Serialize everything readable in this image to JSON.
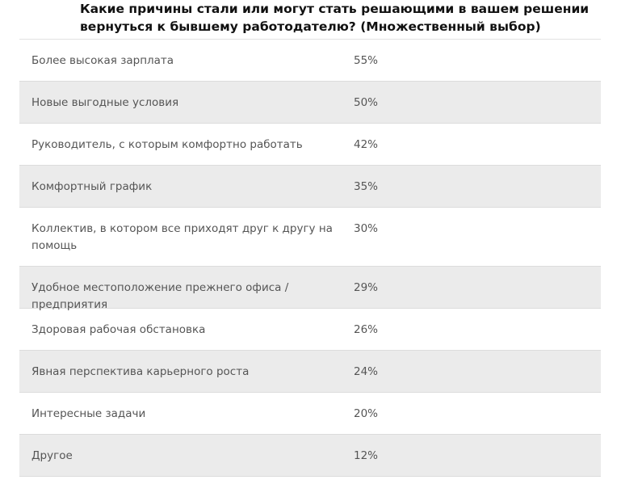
{
  "title": "Какие причины стали или могут стать решающими в вашем решении вернуться к бывшему работодателю? (Множественный выбор)",
  "chart_data": {
    "type": "table",
    "title": "Какие причины стали или могут стать решающими в вашем решении вернуться к бывшему работодателю? (Множественный выбор)",
    "rows": [
      {
        "label": "Более высокая зарплата",
        "value": 55,
        "display": "55%"
      },
      {
        "label": "Новые выгодные условия",
        "value": 50,
        "display": "50%"
      },
      {
        "label": "Руководитель, с которым комфортно работать",
        "value": 42,
        "display": "42%"
      },
      {
        "label": "Комфортный график",
        "value": 35,
        "display": "35%"
      },
      {
        "label": "Коллектив, в котором все приходят друг к другу на помощь",
        "value": 30,
        "display": "30%"
      },
      {
        "label": "Удобное местоположение прежнего офиса / предприятия",
        "value": 29,
        "display": "29%"
      },
      {
        "label": "Здоровая рабочая обстановка",
        "value": 26,
        "display": "26%"
      },
      {
        "label": "Явная перспектива карьерного роста",
        "value": 24,
        "display": "24%"
      },
      {
        "label": "Интересные задачи",
        "value": 20,
        "display": "20%"
      },
      {
        "label": "Другое",
        "value": 12,
        "display": "12%"
      }
    ]
  }
}
